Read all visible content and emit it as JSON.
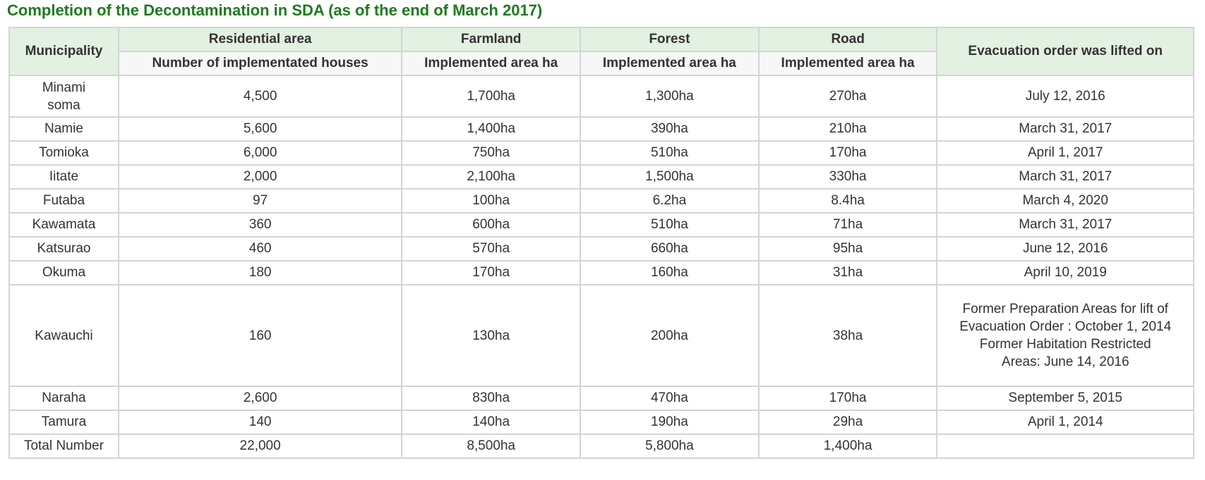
{
  "title": "Completion of the Decontamination in SDA (as of the end of March 2017)",
  "headers": {
    "municipality": "Municipality",
    "residential": "Residential area",
    "farmland": "Farmland",
    "forest": "Forest",
    "road": "Road",
    "lifted": "Evacuation order was lifted on",
    "sub_residential": "Number of implementated houses",
    "sub_farmland": "Implemented area ha",
    "sub_forest": "Implemented area ha",
    "sub_road": "Implemented area ha"
  },
  "rows": [
    {
      "municipality": "Minami soma",
      "houses": "4,500",
      "farmland": "1,700ha",
      "forest": "1,300ha",
      "road": "270ha",
      "lifted": "July 12, 2016"
    },
    {
      "municipality": "Namie",
      "houses": "5,600",
      "farmland": "1,400ha",
      "forest": "390ha",
      "road": "210ha",
      "lifted": "March 31, 2017"
    },
    {
      "municipality": "Tomioka",
      "houses": "6,000",
      "farmland": "750ha",
      "forest": "510ha",
      "road": "170ha",
      "lifted": "April 1, 2017"
    },
    {
      "municipality": "Iitate",
      "houses": "2,000",
      "farmland": "2,100ha",
      "forest": "1,500ha",
      "road": "330ha",
      "lifted": "March 31, 2017"
    },
    {
      "municipality": "Futaba",
      "houses": "97",
      "farmland": "100ha",
      "forest": "6.2ha",
      "road": "8.4ha",
      "lifted": "March 4, 2020"
    },
    {
      "municipality": "Kawamata",
      "houses": "360",
      "farmland": "600ha",
      "forest": "510ha",
      "road": "71ha",
      "lifted": "March 31, 2017"
    },
    {
      "municipality": "Katsurao",
      "houses": "460",
      "farmland": "570ha",
      "forest": "660ha",
      "road": "95ha",
      "lifted": "June 12, 2016"
    },
    {
      "municipality": "Okuma",
      "houses": "180",
      "farmland": "170ha",
      "forest": "160ha",
      "road": "31ha",
      "lifted": "April 10, 2019"
    },
    {
      "municipality": "Kawauchi",
      "houses": "160",
      "farmland": "130ha",
      "forest": "200ha",
      "road": "38ha",
      "lifted": "Former Preparation Areas for lift of Evacuation Order : October 1, 2014 Former Habitation Restricted Areas: June 14, 2016"
    },
    {
      "municipality": "Naraha",
      "houses": "2,600",
      "farmland": "830ha",
      "forest": "470ha",
      "road": "170ha",
      "lifted": "September 5, 2015"
    },
    {
      "municipality": "Tamura",
      "houses": "140",
      "farmland": "140ha",
      "forest": "190ha",
      "road": "29ha",
      "lifted": "April 1, 2014"
    },
    {
      "municipality": "Total Number",
      "houses": "22,000",
      "farmland": "8,500ha",
      "forest": "5,800ha",
      "road": "1,400ha",
      "lifted": ""
    }
  ]
}
